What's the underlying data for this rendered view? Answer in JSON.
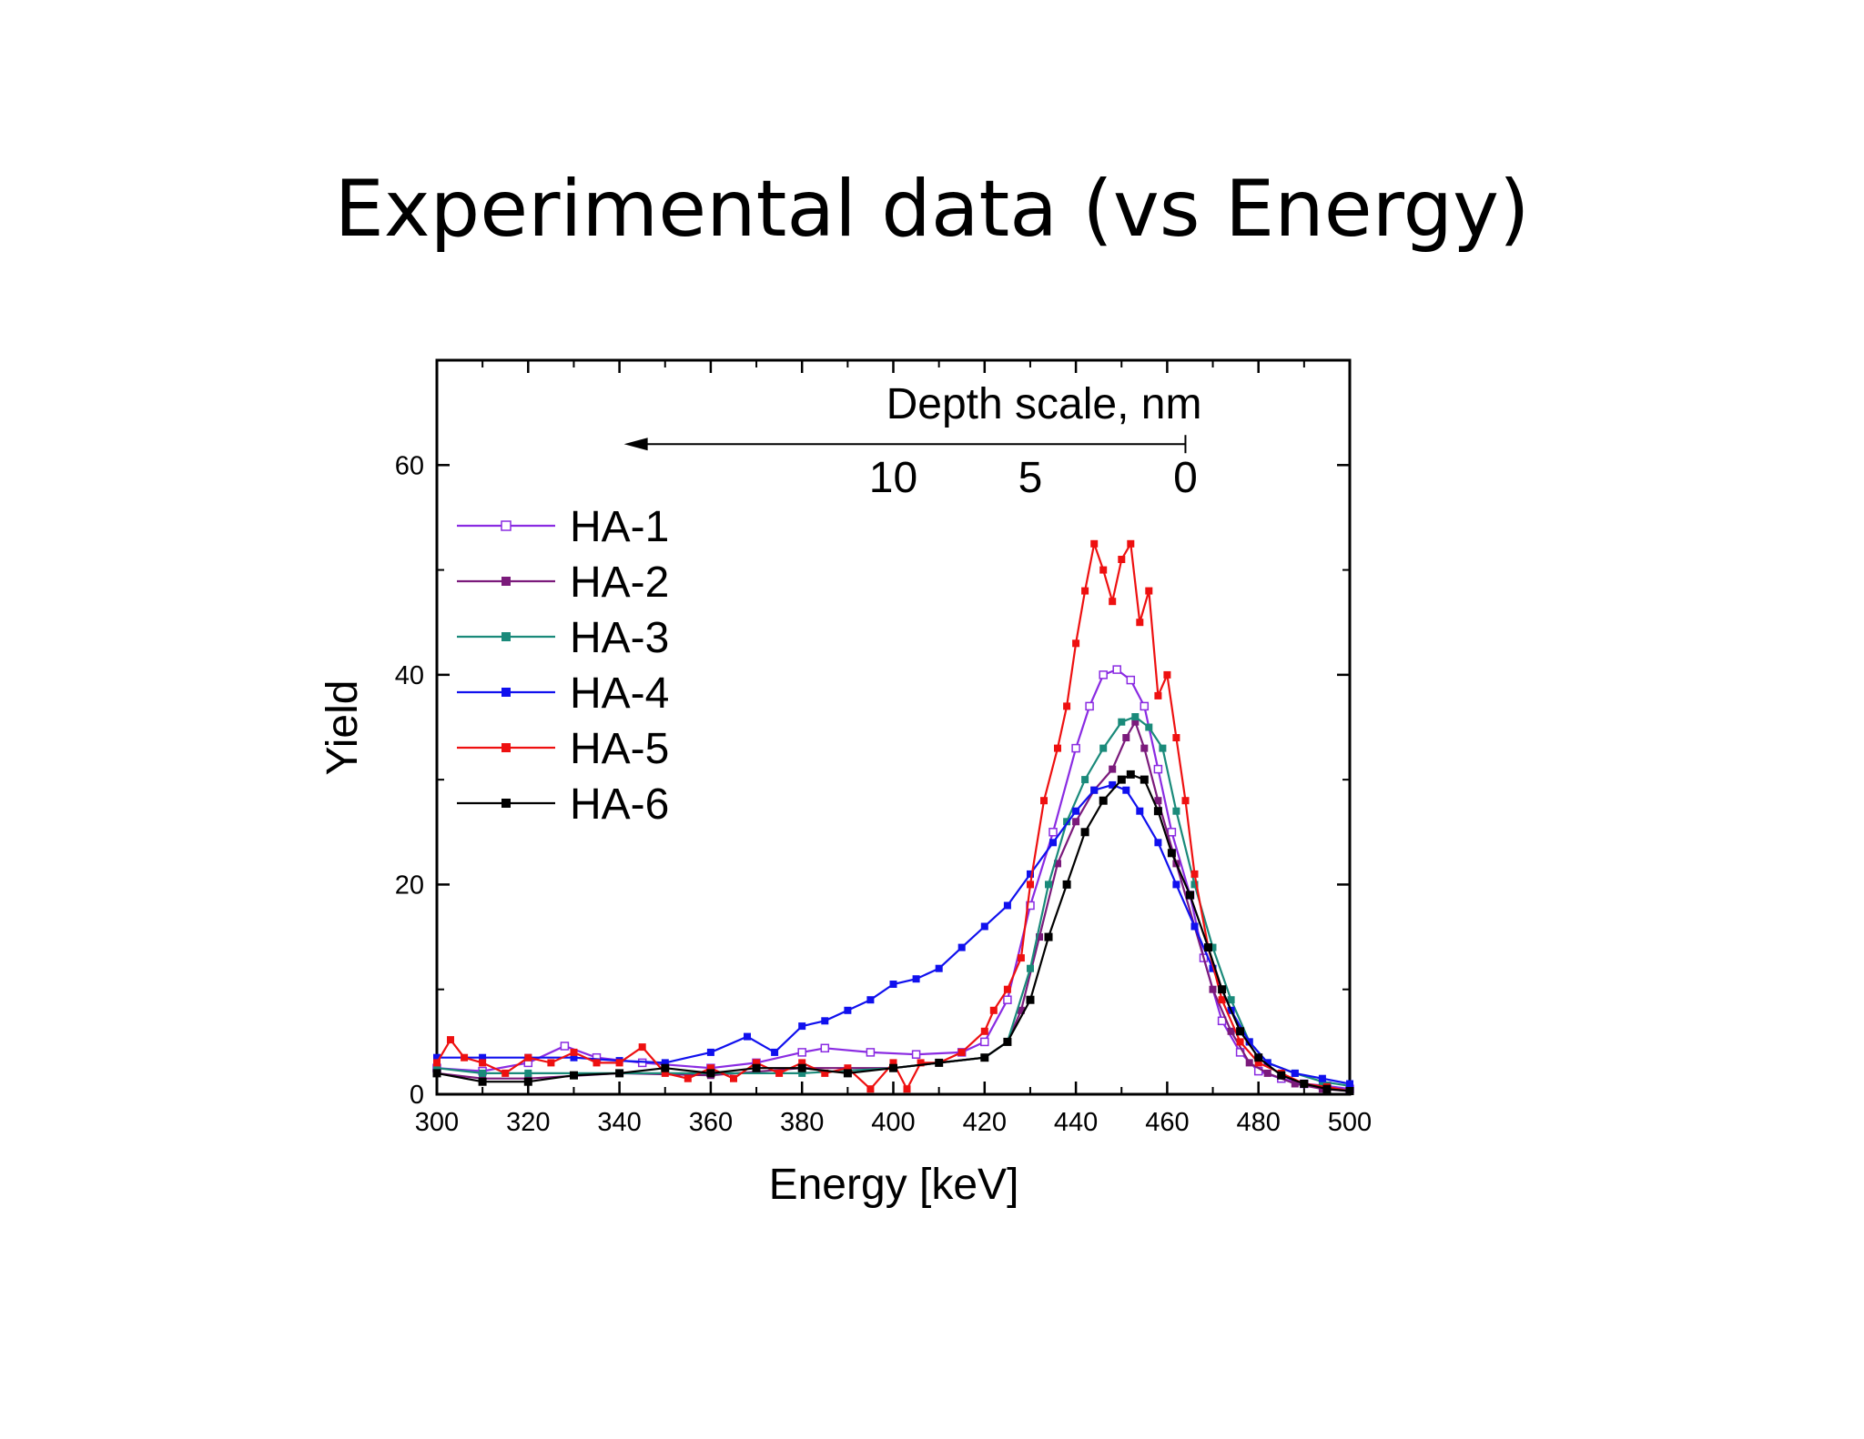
{
  "slide": {
    "title": "Experimental data (vs Energy)"
  },
  "chart_data": {
    "type": "line",
    "xlabel": "Energy [keV]",
    "ylabel": "Yield",
    "xlim": [
      300,
      500
    ],
    "ylim": [
      0,
      70
    ],
    "xticks": [
      300,
      320,
      340,
      360,
      380,
      400,
      420,
      440,
      460,
      480,
      500
    ],
    "yticks": [
      0,
      20,
      40,
      60
    ],
    "grid": false,
    "legend": {
      "position": "top-left"
    },
    "depth_scale": {
      "label": "Depth scale, nm",
      "ticks": [
        {
          "label": "10",
          "energy": 400
        },
        {
          "label": "5",
          "energy": 430
        },
        {
          "label": "0",
          "energy": 464
        }
      ],
      "arrow_from_energy": 464,
      "arrow_to_energy": 341,
      "y": 62
    },
    "series": [
      {
        "name": "HA-1",
        "color": "#8a2be2",
        "marker": "open-square",
        "points": [
          [
            300,
            2.5
          ],
          [
            310,
            2.2
          ],
          [
            320,
            3
          ],
          [
            328,
            4.6
          ],
          [
            335,
            3.5
          ],
          [
            345,
            3
          ],
          [
            360,
            2.5
          ],
          [
            370,
            3
          ],
          [
            380,
            4
          ],
          [
            385,
            4.4
          ],
          [
            395,
            4
          ],
          [
            405,
            3.8
          ],
          [
            415,
            4
          ],
          [
            420,
            5
          ],
          [
            425,
            9
          ],
          [
            430,
            18
          ],
          [
            435,
            25
          ],
          [
            440,
            33
          ],
          [
            443,
            37
          ],
          [
            446,
            40
          ],
          [
            449,
            40.5
          ],
          [
            452,
            39.5
          ],
          [
            455,
            37
          ],
          [
            458,
            31
          ],
          [
            461,
            25
          ],
          [
            465,
            19
          ],
          [
            468,
            13
          ],
          [
            472,
            7
          ],
          [
            476,
            4
          ],
          [
            480,
            2.2
          ],
          [
            485,
            1.5
          ],
          [
            490,
            1
          ],
          [
            495,
            0.8
          ],
          [
            500,
            0.5
          ]
        ]
      },
      {
        "name": "HA-2",
        "color": "#7b1a7b",
        "marker": "filled-square",
        "points": [
          [
            300,
            2
          ],
          [
            310,
            1.5
          ],
          [
            320,
            1.5
          ],
          [
            340,
            2
          ],
          [
            360,
            1.8
          ],
          [
            380,
            2.5
          ],
          [
            400,
            2.5
          ],
          [
            410,
            3
          ],
          [
            420,
            3.5
          ],
          [
            425,
            5
          ],
          [
            428,
            8
          ],
          [
            432,
            15
          ],
          [
            436,
            22
          ],
          [
            440,
            26
          ],
          [
            444,
            29
          ],
          [
            448,
            31
          ],
          [
            451,
            34
          ],
          [
            453,
            35.5
          ],
          [
            455,
            33
          ],
          [
            458,
            28
          ],
          [
            462,
            22
          ],
          [
            466,
            16
          ],
          [
            470,
            10
          ],
          [
            474,
            6
          ],
          [
            478,
            3
          ],
          [
            482,
            2
          ],
          [
            488,
            1
          ],
          [
            494,
            0.5
          ],
          [
            500,
            0.3
          ]
        ]
      },
      {
        "name": "HA-3",
        "color": "#1a8a7a",
        "marker": "filled-square",
        "points": [
          [
            300,
            2.5
          ],
          [
            310,
            2
          ],
          [
            320,
            2
          ],
          [
            340,
            2
          ],
          [
            360,
            2
          ],
          [
            380,
            2
          ],
          [
            400,
            2.5
          ],
          [
            410,
            3
          ],
          [
            420,
            3.5
          ],
          [
            425,
            5
          ],
          [
            430,
            12
          ],
          [
            434,
            20
          ],
          [
            438,
            26
          ],
          [
            442,
            30
          ],
          [
            446,
            33
          ],
          [
            450,
            35.5
          ],
          [
            453,
            36
          ],
          [
            456,
            35
          ],
          [
            459,
            33
          ],
          [
            462,
            27
          ],
          [
            466,
            20
          ],
          [
            470,
            14
          ],
          [
            474,
            9
          ],
          [
            478,
            5
          ],
          [
            482,
            3
          ],
          [
            488,
            2
          ],
          [
            494,
            1.2
          ],
          [
            500,
            0.8
          ]
        ]
      },
      {
        "name": "HA-4",
        "color": "#1010ee",
        "marker": "filled-square",
        "points": [
          [
            300,
            3.5
          ],
          [
            310,
            3.5
          ],
          [
            320,
            3.5
          ],
          [
            330,
            3.5
          ],
          [
            340,
            3.2
          ],
          [
            350,
            3
          ],
          [
            360,
            4
          ],
          [
            368,
            5.5
          ],
          [
            374,
            4
          ],
          [
            380,
            6.5
          ],
          [
            385,
            7
          ],
          [
            390,
            8
          ],
          [
            395,
            9
          ],
          [
            400,
            10.5
          ],
          [
            405,
            11
          ],
          [
            410,
            12
          ],
          [
            415,
            14
          ],
          [
            420,
            16
          ],
          [
            425,
            18
          ],
          [
            430,
            21
          ],
          [
            435,
            24
          ],
          [
            440,
            27
          ],
          [
            444,
            29
          ],
          [
            448,
            29.5
          ],
          [
            451,
            29
          ],
          [
            454,
            27
          ],
          [
            458,
            24
          ],
          [
            462,
            20
          ],
          [
            466,
            16
          ],
          [
            470,
            12
          ],
          [
            474,
            8
          ],
          [
            478,
            5
          ],
          [
            482,
            3
          ],
          [
            488,
            2
          ],
          [
            494,
            1.5
          ],
          [
            500,
            1
          ]
        ]
      },
      {
        "name": "HA-5",
        "color": "#ee1010",
        "marker": "filled-square",
        "points": [
          [
            300,
            3
          ],
          [
            303,
            5.2
          ],
          [
            306,
            3.5
          ],
          [
            310,
            3
          ],
          [
            315,
            2
          ],
          [
            320,
            3.5
          ],
          [
            325,
            3
          ],
          [
            330,
            4
          ],
          [
            335,
            3
          ],
          [
            340,
            3
          ],
          [
            345,
            4.5
          ],
          [
            350,
            2
          ],
          [
            355,
            1.5
          ],
          [
            360,
            2.5
          ],
          [
            365,
            1.5
          ],
          [
            370,
            3
          ],
          [
            375,
            2
          ],
          [
            380,
            3
          ],
          [
            385,
            2
          ],
          [
            390,
            2.5
          ],
          [
            395,
            0.5
          ],
          [
            400,
            3
          ],
          [
            403,
            0.5
          ],
          [
            406,
            3
          ],
          [
            410,
            3
          ],
          [
            415,
            4
          ],
          [
            420,
            6
          ],
          [
            422,
            8
          ],
          [
            425,
            10
          ],
          [
            428,
            13
          ],
          [
            430,
            20
          ],
          [
            433,
            28
          ],
          [
            436,
            33
          ],
          [
            438,
            37
          ],
          [
            440,
            43
          ],
          [
            442,
            48
          ],
          [
            444,
            52.5
          ],
          [
            446,
            50
          ],
          [
            448,
            47
          ],
          [
            450,
            51
          ],
          [
            452,
            52.5
          ],
          [
            454,
            45
          ],
          [
            456,
            48
          ],
          [
            458,
            38
          ],
          [
            460,
            40
          ],
          [
            462,
            34
          ],
          [
            464,
            28
          ],
          [
            466,
            21
          ],
          [
            469,
            14
          ],
          [
            472,
            9
          ],
          [
            476,
            5
          ],
          [
            480,
            3
          ],
          [
            485,
            2
          ],
          [
            490,
            1
          ],
          [
            495,
            0.7
          ],
          [
            500,
            0.3
          ]
        ]
      },
      {
        "name": "HA-6",
        "color": "#000000",
        "marker": "filled-square",
        "points": [
          [
            300,
            2
          ],
          [
            310,
            1.2
          ],
          [
            320,
            1.2
          ],
          [
            330,
            1.8
          ],
          [
            340,
            2
          ],
          [
            350,
            2.5
          ],
          [
            360,
            2
          ],
          [
            370,
            2.5
          ],
          [
            380,
            2.5
          ],
          [
            390,
            2
          ],
          [
            400,
            2.5
          ],
          [
            410,
            3
          ],
          [
            420,
            3.5
          ],
          [
            425,
            5
          ],
          [
            430,
            9
          ],
          [
            434,
            15
          ],
          [
            438,
            20
          ],
          [
            442,
            25
          ],
          [
            446,
            28
          ],
          [
            450,
            30
          ],
          [
            452,
            30.5
          ],
          [
            455,
            30
          ],
          [
            458,
            27
          ],
          [
            461,
            23
          ],
          [
            465,
            19
          ],
          [
            469,
            14
          ],
          [
            472,
            10
          ],
          [
            476,
            6
          ],
          [
            480,
            3.5
          ],
          [
            485,
            1.8
          ],
          [
            490,
            1
          ],
          [
            495,
            0.5
          ],
          [
            500,
            0.3
          ]
        ]
      }
    ]
  }
}
